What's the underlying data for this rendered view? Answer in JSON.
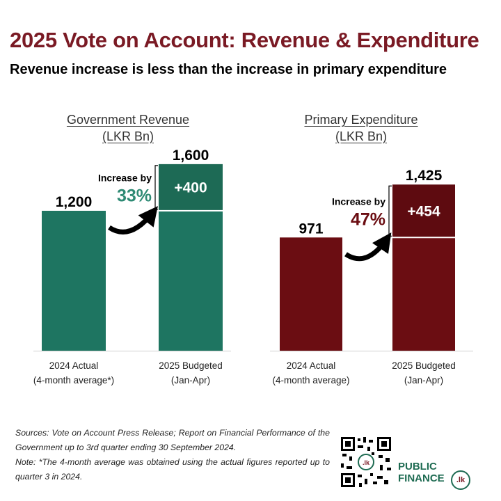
{
  "title": "2025 Vote on Account: Revenue & Expenditure",
  "subtitle": "Revenue increase is less than the increase in primary expenditure",
  "colors": {
    "title": "#7a1a24",
    "revenue": "#1e7561",
    "revenue_increase": "#1d6a55",
    "expenditure": "#6b0d12",
    "expenditure_increase": "#5e0b10"
  },
  "chart_data": [
    {
      "type": "bar",
      "title_line1": "Government Revenue",
      "title_line2": "(LKR Bn)",
      "categories": [
        [
          "2024 Actual",
          "(4-month average*)"
        ],
        [
          "2025 Budgeted",
          "(Jan-Apr)"
        ]
      ],
      "values": [
        1200,
        1600
      ],
      "value_labels": [
        "1,200",
        "1,600"
      ],
      "increase": 400,
      "increase_label": "+400",
      "increase_by_text": "Increase by",
      "increase_pct": "33%",
      "ylim": [
        0,
        1850
      ]
    },
    {
      "type": "bar",
      "title_line1": "Primary Expenditure",
      "title_line2": "(LKR Bn)",
      "categories": [
        [
          "2024 Actual",
          "(4-month average)"
        ],
        [
          "2025 Budgeted",
          "(Jan-Apr)"
        ]
      ],
      "values": [
        971,
        1425
      ],
      "value_labels": [
        "971",
        "1,425"
      ],
      "increase": 454,
      "increase_label": "+454",
      "increase_by_text": "Increase by",
      "increase_pct": "47%",
      "ylim": [
        0,
        1850
      ]
    }
  ],
  "sources": {
    "line1": "Sources: Vote on Account Press Release; Report on Financial Performance of the Government up to 3rd quarter ending 30 September 2024.",
    "line2": "Note: *The 4-month average was obtained using the actual figures reported up to quarter 3 in 2024."
  },
  "logo": {
    "text_line1": "PUBLIC",
    "text_line2": "FINANCE",
    "badge": ".lk"
  },
  "qr_badge": ".lk"
}
